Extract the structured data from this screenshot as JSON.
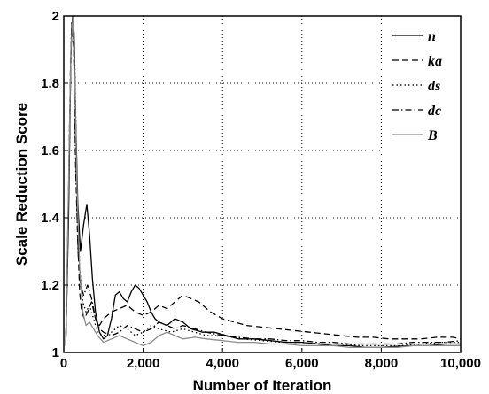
{
  "chart_data": {
    "type": "line",
    "title": "",
    "xlabel": "Number of Iteration",
    "ylabel": "Scale Reduction Score",
    "xlim": [
      0,
      10000
    ],
    "ylim": [
      1,
      2
    ],
    "xticks": [
      0,
      2000,
      4000,
      6000,
      8000,
      10000
    ],
    "xtick_labels": [
      "0",
      "2,000",
      "4,000",
      "6,000",
      "8,000",
      "10,000"
    ],
    "yticks": [
      1,
      1.2,
      1.4,
      1.6,
      1.8,
      2
    ],
    "ytick_labels": [
      "1",
      "1.2",
      "1.4",
      "1.6",
      "1.8",
      "2"
    ],
    "grid": true,
    "legend_position": "top-right",
    "colors": {
      "dark": "#000000",
      "light": "#8c8c8c"
    },
    "series": [
      {
        "name": "n",
        "style": "solid",
        "color": "#000000",
        "points": [
          [
            50,
            1.02
          ],
          [
            120,
            1.4
          ],
          [
            180,
            1.9
          ],
          [
            220,
            2.0
          ],
          [
            260,
            1.95
          ],
          [
            300,
            1.7
          ],
          [
            350,
            1.45
          ],
          [
            420,
            1.3
          ],
          [
            500,
            1.38
          ],
          [
            580,
            1.44
          ],
          [
            650,
            1.35
          ],
          [
            720,
            1.22
          ],
          [
            800,
            1.12
          ],
          [
            900,
            1.06
          ],
          [
            1000,
            1.04
          ],
          [
            1100,
            1.05
          ],
          [
            1200,
            1.1
          ],
          [
            1300,
            1.17
          ],
          [
            1400,
            1.18
          ],
          [
            1500,
            1.16
          ],
          [
            1600,
            1.15
          ],
          [
            1700,
            1.18
          ],
          [
            1800,
            1.2
          ],
          [
            1900,
            1.19
          ],
          [
            2000,
            1.17
          ],
          [
            2100,
            1.15
          ],
          [
            2200,
            1.12
          ],
          [
            2300,
            1.1
          ],
          [
            2400,
            1.09
          ],
          [
            2600,
            1.08
          ],
          [
            2800,
            1.1
          ],
          [
            3000,
            1.09
          ],
          [
            3200,
            1.07
          ],
          [
            3500,
            1.06
          ],
          [
            3800,
            1.06
          ],
          [
            4100,
            1.05
          ],
          [
            4400,
            1.04
          ],
          [
            4800,
            1.04
          ],
          [
            5200,
            1.035
          ],
          [
            5600,
            1.03
          ],
          [
            6000,
            1.03
          ],
          [
            6400,
            1.025
          ],
          [
            6800,
            1.02
          ],
          [
            7200,
            1.02
          ],
          [
            7600,
            1.015
          ],
          [
            8000,
            1.015
          ],
          [
            8400,
            1.018
          ],
          [
            8800,
            1.02
          ],
          [
            9200,
            1.02
          ],
          [
            9600,
            1.025
          ],
          [
            10000,
            1.025
          ]
        ]
      },
      {
        "name": "ka",
        "style": "dashed",
        "color": "#000000",
        "points": [
          [
            50,
            1.02
          ],
          [
            100,
            1.3
          ],
          [
            150,
            1.7
          ],
          [
            200,
            1.98
          ],
          [
            250,
            1.9
          ],
          [
            300,
            1.6
          ],
          [
            350,
            1.35
          ],
          [
            400,
            1.18
          ],
          [
            450,
            1.12
          ],
          [
            520,
            1.1
          ],
          [
            600,
            1.12
          ],
          [
            700,
            1.15
          ],
          [
            800,
            1.1
          ],
          [
            900,
            1.08
          ],
          [
            1000,
            1.1
          ],
          [
            1200,
            1.12
          ],
          [
            1400,
            1.13
          ],
          [
            1600,
            1.14
          ],
          [
            1800,
            1.12
          ],
          [
            2000,
            1.11
          ],
          [
            2200,
            1.12
          ],
          [
            2400,
            1.14
          ],
          [
            2600,
            1.13
          ],
          [
            2800,
            1.15
          ],
          [
            3000,
            1.17
          ],
          [
            3200,
            1.16
          ],
          [
            3400,
            1.15
          ],
          [
            3700,
            1.12
          ],
          [
            4000,
            1.1
          ],
          [
            4300,
            1.09
          ],
          [
            4600,
            1.08
          ],
          [
            5000,
            1.075
          ],
          [
            5400,
            1.07
          ],
          [
            5800,
            1.065
          ],
          [
            6200,
            1.06
          ],
          [
            6600,
            1.055
          ],
          [
            7000,
            1.05
          ],
          [
            7400,
            1.045
          ],
          [
            7800,
            1.045
          ],
          [
            8200,
            1.04
          ],
          [
            8600,
            1.04
          ],
          [
            9000,
            1.04
          ],
          [
            9400,
            1.045
          ],
          [
            9800,
            1.045
          ],
          [
            10000,
            1.04
          ]
        ]
      },
      {
        "name": "ds",
        "style": "dotted",
        "color": "#000000",
        "points": [
          [
            50,
            1.02
          ],
          [
            130,
            1.5
          ],
          [
            190,
            1.95
          ],
          [
            230,
            2.0
          ],
          [
            280,
            1.85
          ],
          [
            330,
            1.5
          ],
          [
            400,
            1.25
          ],
          [
            480,
            1.15
          ],
          [
            560,
            1.12
          ],
          [
            650,
            1.14
          ],
          [
            750,
            1.1
          ],
          [
            850,
            1.06
          ],
          [
            1000,
            1.05
          ],
          [
            1200,
            1.06
          ],
          [
            1400,
            1.08
          ],
          [
            1600,
            1.07
          ],
          [
            1800,
            1.05
          ],
          [
            2000,
            1.06
          ],
          [
            2200,
            1.08
          ],
          [
            2400,
            1.07
          ],
          [
            2700,
            1.06
          ],
          [
            3000,
            1.07
          ],
          [
            3300,
            1.06
          ],
          [
            3600,
            1.05
          ],
          [
            4000,
            1.05
          ],
          [
            4500,
            1.04
          ],
          [
            5000,
            1.035
          ],
          [
            5500,
            1.03
          ],
          [
            6000,
            1.03
          ],
          [
            6500,
            1.025
          ],
          [
            7000,
            1.025
          ],
          [
            7500,
            1.02
          ],
          [
            8000,
            1.02
          ],
          [
            8500,
            1.02
          ],
          [
            9000,
            1.025
          ],
          [
            9500,
            1.03
          ],
          [
            10000,
            1.03
          ]
        ]
      },
      {
        "name": "dc",
        "style": "dashdot",
        "color": "#000000",
        "points": [
          [
            50,
            1.02
          ],
          [
            110,
            1.4
          ],
          [
            170,
            1.85
          ],
          [
            210,
            1.98
          ],
          [
            250,
            1.92
          ],
          [
            300,
            1.55
          ],
          [
            360,
            1.3
          ],
          [
            420,
            1.2
          ],
          [
            500,
            1.17
          ],
          [
            600,
            1.2
          ],
          [
            700,
            1.16
          ],
          [
            800,
            1.1
          ],
          [
            900,
            1.07
          ],
          [
            1000,
            1.06
          ],
          [
            1200,
            1.05
          ],
          [
            1400,
            1.06
          ],
          [
            1600,
            1.08
          ],
          [
            1800,
            1.07
          ],
          [
            2000,
            1.06
          ],
          [
            2200,
            1.07
          ],
          [
            2400,
            1.09
          ],
          [
            2600,
            1.08
          ],
          [
            2800,
            1.07
          ],
          [
            3000,
            1.08
          ],
          [
            3300,
            1.07
          ],
          [
            3600,
            1.06
          ],
          [
            4000,
            1.05
          ],
          [
            4400,
            1.045
          ],
          [
            4800,
            1.04
          ],
          [
            5200,
            1.04
          ],
          [
            5600,
            1.035
          ],
          [
            6000,
            1.035
          ],
          [
            6400,
            1.03
          ],
          [
            6800,
            1.03
          ],
          [
            7200,
            1.025
          ],
          [
            7600,
            1.025
          ],
          [
            8000,
            1.025
          ],
          [
            8400,
            1.025
          ],
          [
            8800,
            1.03
          ],
          [
            9200,
            1.03
          ],
          [
            9600,
            1.03
          ],
          [
            10000,
            1.035
          ]
        ]
      },
      {
        "name": "B",
        "style": "solid",
        "color": "#8c8c8c",
        "points": [
          [
            50,
            1.02
          ],
          [
            120,
            1.5
          ],
          [
            180,
            1.9
          ],
          [
            230,
            2.0
          ],
          [
            280,
            1.8
          ],
          [
            330,
            1.5
          ],
          [
            400,
            1.25
          ],
          [
            480,
            1.12
          ],
          [
            560,
            1.08
          ],
          [
            650,
            1.09
          ],
          [
            750,
            1.07
          ],
          [
            850,
            1.05
          ],
          [
            1000,
            1.03
          ],
          [
            1200,
            1.04
          ],
          [
            1400,
            1.05
          ],
          [
            1600,
            1.04
          ],
          [
            1800,
            1.03
          ],
          [
            2000,
            1.02
          ],
          [
            2200,
            1.03
          ],
          [
            2400,
            1.05
          ],
          [
            2600,
            1.06
          ],
          [
            2800,
            1.05
          ],
          [
            3000,
            1.04
          ],
          [
            3300,
            1.045
          ],
          [
            3600,
            1.04
          ],
          [
            4000,
            1.035
          ],
          [
            4400,
            1.03
          ],
          [
            4800,
            1.03
          ],
          [
            5200,
            1.025
          ],
          [
            5600,
            1.025
          ],
          [
            6000,
            1.02
          ],
          [
            6400,
            1.02
          ],
          [
            6800,
            1.02
          ],
          [
            7200,
            1.015
          ],
          [
            7600,
            1.015
          ],
          [
            8000,
            1.015
          ],
          [
            8400,
            1.015
          ],
          [
            8800,
            1.02
          ],
          [
            9200,
            1.02
          ],
          [
            9600,
            1.02
          ],
          [
            10000,
            1.02
          ]
        ]
      }
    ]
  }
}
